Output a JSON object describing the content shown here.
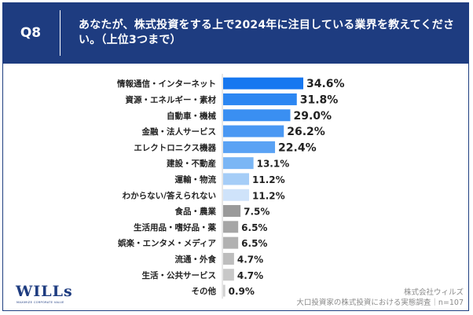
{
  "question": {
    "number": "Q8",
    "text": "あなたが、株式投資をする上で2024年に注目している業界を教えてください。（上位3つまで）"
  },
  "chart_data": {
    "type": "bar",
    "orientation": "horizontal",
    "categories": [
      "情報通信・インターネット",
      "資源・エネルギー・素材",
      "自動車・機械",
      "金融・法人サービス",
      "エレクトロニクス機器",
      "建設・不動産",
      "運輸・物流",
      "わからない/答えられない",
      "食品・農業",
      "生活用品・嗜好品・薬",
      "娯楽・エンタメ・メディア",
      "流通・外食",
      "生活・公共サービス",
      "その他"
    ],
    "values": [
      34.6,
      31.8,
      29.0,
      26.2,
      22.4,
      13.1,
      11.2,
      11.2,
      7.5,
      6.5,
      6.5,
      4.7,
      4.7,
      0.9
    ],
    "value_labels": [
      "34.6%",
      "31.8%",
      "29.0%",
      "26.2%",
      "22.4%",
      "13.1%",
      "11.2%",
      "11.2%",
      "7.5%",
      "6.5%",
      "6.5%",
      "4.7%",
      "4.7%",
      "0.9%"
    ],
    "bar_colors": [
      "#1677f0",
      "#2b86f2",
      "#3a8ff2",
      "#4a98f3",
      "#5aa2f4",
      "#7ab6f5",
      "#a5cdf7",
      "#cfe3fa",
      "#9a9a9a",
      "#a6a6a6",
      "#b1b1b1",
      "#bdbdbd",
      "#c8c8c8",
      "#d0d0d0"
    ],
    "xlim": [
      0,
      40
    ],
    "unit": "%"
  },
  "footer": {
    "company": "株式会社ウィルズ",
    "survey": "大口投資家の株式投資における実態調査｜n=107"
  },
  "logo": {
    "name": "WILLs",
    "tagline": "MAXIMIZE CORPORATE VALUE"
  }
}
